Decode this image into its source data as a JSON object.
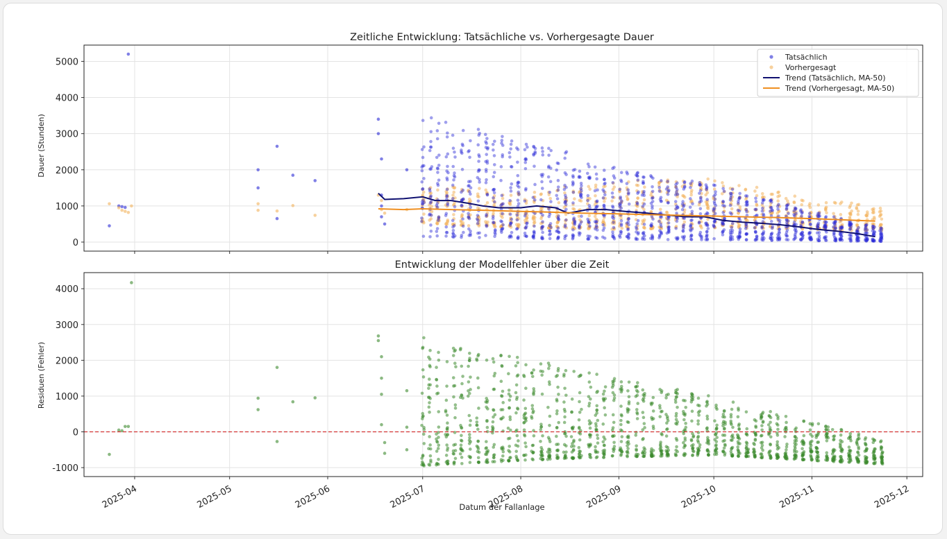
{
  "colors": {
    "actual": "#2b2bd6",
    "predicted": "#f2b35c",
    "trend_actual": "#0f1070",
    "trend_predicted": "#ef8f20",
    "residual": "#3d8a2e",
    "zero_line": "#d33333",
    "grid": "#e3e3e3"
  },
  "xlabel": "Datum der Fallanlage",
  "x_ticks": [
    "2025-04",
    "2025-05",
    "2025-06",
    "2025-07",
    "2025-08",
    "2025-09",
    "2025-10",
    "2025-11",
    "2025-12"
  ],
  "chart_data": [
    {
      "type": "scatter",
      "title": "Zeitliche Entwicklung: Tatsächliche vs. Vorhergesagte Dauer",
      "ylabel": "Dauer (Stunden)",
      "xlim": [
        "2025-03-16",
        "2025-12-06"
      ],
      "ylim": [
        -250,
        5450
      ],
      "y_ticks": [
        0,
        1000,
        2000,
        3000,
        4000,
        5000
      ],
      "grid": true,
      "legend_position": "top-right",
      "legend": [
        {
          "label": "Tatsächlich",
          "kind": "dot",
          "color": "#2b2bd6"
        },
        {
          "label": "Vorhergesagt",
          "kind": "dot",
          "color": "#f2b35c"
        },
        {
          "label": "Trend (Tatsächlich, MA-50)",
          "kind": "line",
          "color": "#0f1070"
        },
        {
          "label": "Trend (Vorhergesagt, MA-50)",
          "kind": "line",
          "color": "#ef8f20"
        }
      ],
      "series": [
        {
          "name": "Tatsächlich",
          "kind": "scatter",
          "points": [
            [
              "2025-03-24",
              450
            ],
            [
              "2025-03-27",
              1000
            ],
            [
              "2025-03-28",
              980
            ],
            [
              "2025-03-29",
              960
            ],
            [
              "2025-03-30",
              5200
            ],
            [
              "2025-05-10",
              2000
            ],
            [
              "2025-05-10",
              1500
            ],
            [
              "2025-05-16",
              2650
            ],
            [
              "2025-05-16",
              650
            ],
            [
              "2025-05-21",
              1850
            ],
            [
              "2025-05-28",
              1700
            ],
            [
              "2025-06-17",
              3400
            ],
            [
              "2025-06-17",
              3000
            ],
            [
              "2025-06-18",
              2300
            ],
            [
              "2025-06-18",
              1300
            ],
            [
              "2025-06-18",
              1000
            ],
            [
              "2025-06-18",
              700
            ],
            [
              "2025-06-19",
              500
            ],
            [
              "2025-06-26",
              2000
            ]
          ]
        },
        {
          "name": "Vorhergesagt",
          "kind": "scatter",
          "points": [
            [
              "2025-03-24",
              1060
            ],
            [
              "2025-03-27",
              950
            ],
            [
              "2025-03-28",
              880
            ],
            [
              "2025-03-29",
              850
            ],
            [
              "2025-03-30",
              820
            ],
            [
              "2025-03-31",
              1000
            ],
            [
              "2025-05-10",
              1060
            ],
            [
              "2025-05-10",
              880
            ],
            [
              "2025-05-16",
              860
            ],
            [
              "2025-05-21",
              1010
            ],
            [
              "2025-05-28",
              740
            ],
            [
              "2025-06-17",
              1300
            ],
            [
              "2025-06-18",
              1150
            ],
            [
              "2025-06-18",
              900
            ],
            [
              "2025-06-19",
              800
            ],
            [
              "2025-06-26",
              900
            ]
          ]
        },
        {
          "name": "Trend (Tatsächlich, MA-50)",
          "kind": "line",
          "points": [
            [
              "2025-06-17",
              1350
            ],
            [
              "2025-06-19",
              1180
            ],
            [
              "2025-06-25",
              1200
            ],
            [
              "2025-07-01",
              1250
            ],
            [
              "2025-07-05",
              1150
            ],
            [
              "2025-07-10",
              1150
            ],
            [
              "2025-07-15",
              1080
            ],
            [
              "2025-07-20",
              1000
            ],
            [
              "2025-07-25",
              950
            ],
            [
              "2025-08-01",
              950
            ],
            [
              "2025-08-06",
              1000
            ],
            [
              "2025-08-12",
              950
            ],
            [
              "2025-08-16",
              800
            ],
            [
              "2025-08-22",
              900
            ],
            [
              "2025-08-28",
              900
            ],
            [
              "2025-09-03",
              850
            ],
            [
              "2025-09-10",
              800
            ],
            [
              "2025-09-16",
              750
            ],
            [
              "2025-09-22",
              700
            ],
            [
              "2025-09-28",
              700
            ],
            [
              "2025-10-04",
              600
            ],
            [
              "2025-10-10",
              550
            ],
            [
              "2025-10-16",
              520
            ],
            [
              "2025-10-22",
              480
            ],
            [
              "2025-10-28",
              420
            ],
            [
              "2025-11-03",
              350
            ],
            [
              "2025-11-09",
              300
            ],
            [
              "2025-11-15",
              240
            ],
            [
              "2025-11-21",
              150
            ]
          ]
        },
        {
          "name": "Trend (Vorhergesagt, MA-50)",
          "kind": "line",
          "points": [
            [
              "2025-06-17",
              920
            ],
            [
              "2025-06-25",
              900
            ],
            [
              "2025-07-01",
              920
            ],
            [
              "2025-07-10",
              900
            ],
            [
              "2025-07-20",
              880
            ],
            [
              "2025-08-01",
              850
            ],
            [
              "2025-08-10",
              830
            ],
            [
              "2025-08-20",
              800
            ],
            [
              "2025-09-01",
              780
            ],
            [
              "2025-09-10",
              760
            ],
            [
              "2025-09-20",
              740
            ],
            [
              "2025-10-01",
              720
            ],
            [
              "2025-10-10",
              700
            ],
            [
              "2025-10-20",
              680
            ],
            [
              "2025-11-01",
              650
            ],
            [
              "2025-11-10",
              620
            ],
            [
              "2025-11-21",
              580
            ]
          ]
        }
      ],
      "clusters": [
        {
          "start": "2025-07-01",
          "end": "2025-11-23",
          "step_days": 2.5,
          "actual": [
            [
              "2025-07-01",
              150,
              3500
            ],
            [
              "2025-08-01",
              100,
              2900
            ],
            [
              "2025-09-01",
              80,
              2050
            ],
            [
              "2025-10-01",
              60,
              1600
            ],
            [
              "2025-11-01",
              40,
              850
            ],
            [
              "2025-11-23",
              20,
              400
            ]
          ],
          "predicted": [
            [
              "2025-07-01",
              500,
              1600
            ],
            [
              "2025-08-01",
              400,
              1400
            ],
            [
              "2025-09-01",
              350,
              1700
            ],
            [
              "2025-10-01",
              400,
              1750
            ],
            [
              "2025-11-01",
              350,
              1200
            ],
            [
              "2025-11-23",
              300,
              980
            ]
          ]
        }
      ]
    },
    {
      "type": "scatter",
      "title": "Entwicklung der Modellfehler über die Zeit",
      "ylabel": "Residuen (Fehler)",
      "xlim": [
        "2025-03-16",
        "2025-12-06"
      ],
      "ylim": [
        -1250,
        4450
      ],
      "y_ticks": [
        -1000,
        0,
        1000,
        2000,
        3000,
        4000
      ],
      "grid": true,
      "reference_line": {
        "y": 0,
        "style": "dashed",
        "color": "#d33333"
      },
      "series": [
        {
          "name": "Residuen",
          "kind": "scatter",
          "points": [
            [
              "2025-03-24",
              -630
            ],
            [
              "2025-03-27",
              50
            ],
            [
              "2025-03-28",
              30
            ],
            [
              "2025-03-29",
              150
            ],
            [
              "2025-03-30",
              150
            ],
            [
              "2025-03-31",
              4170
            ],
            [
              "2025-05-10",
              940
            ],
            [
              "2025-05-10",
              620
            ],
            [
              "2025-05-16",
              1800
            ],
            [
              "2025-05-16",
              -270
            ],
            [
              "2025-05-21",
              840
            ],
            [
              "2025-05-28",
              950
            ],
            [
              "2025-06-17",
              2680
            ],
            [
              "2025-06-17",
              2550
            ],
            [
              "2025-06-18",
              2100
            ],
            [
              "2025-06-18",
              1500
            ],
            [
              "2025-06-18",
              1050
            ],
            [
              "2025-06-18",
              200
            ],
            [
              "2025-06-19",
              -300
            ],
            [
              "2025-06-19",
              -600
            ],
            [
              "2025-06-26",
              1150
            ],
            [
              "2025-06-26",
              130
            ],
            [
              "2025-06-26",
              -500
            ]
          ]
        }
      ],
      "clusters": [
        {
          "start": "2025-07-01",
          "end": "2025-11-23",
          "step_days": 2.5,
          "residual": [
            [
              "2025-07-01",
              -950,
              2700
            ],
            [
              "2025-08-01",
              -800,
              2100
            ],
            [
              "2025-09-01",
              -700,
              1500
            ],
            [
              "2025-10-01",
              -650,
              1000
            ],
            [
              "2025-11-01",
              -800,
              300
            ],
            [
              "2025-11-23",
              -900,
              -200
            ]
          ]
        }
      ]
    }
  ]
}
